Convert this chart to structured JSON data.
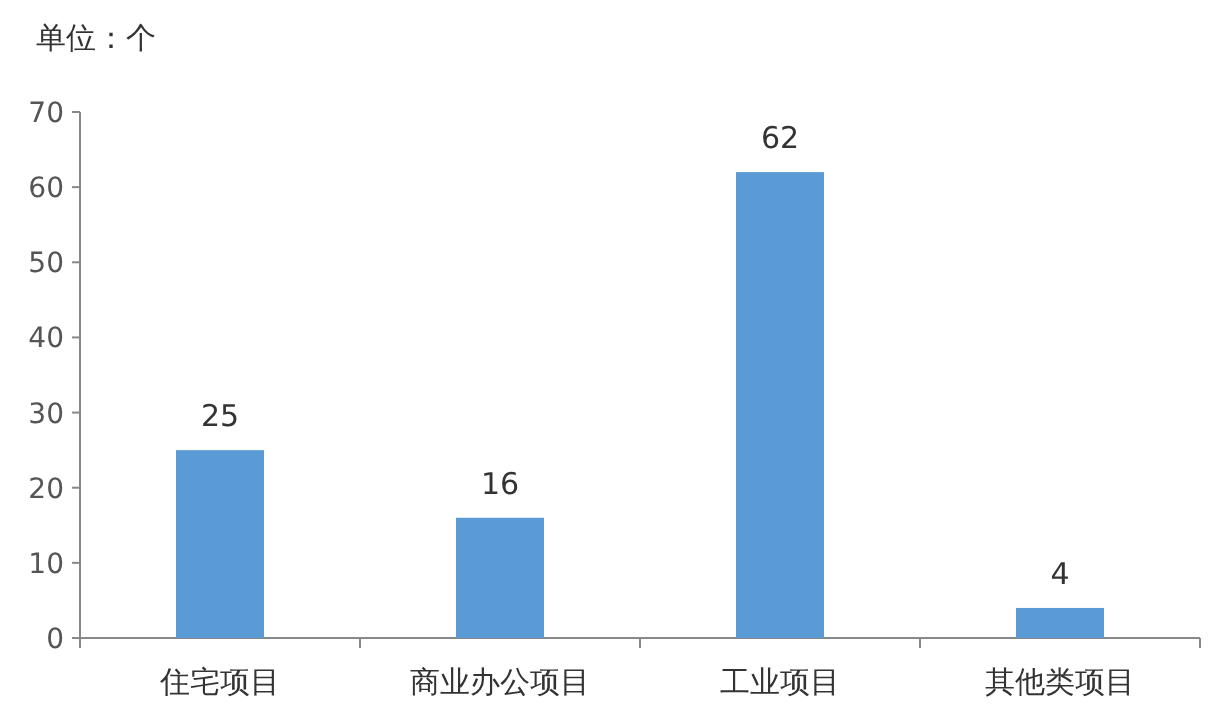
{
  "chart_data": {
    "type": "bar",
    "ylabel": "单位：个",
    "categories": [
      "住宅项目",
      "商业办公项目",
      "工业项目",
      "其他类项目"
    ],
    "values": [
      25,
      16,
      62,
      4
    ],
    "color": "#5b9bd5",
    "ylim": [
      0,
      70
    ],
    "yticks": [
      0,
      10,
      20,
      30,
      40,
      50,
      60,
      70
    ],
    "data_labels": true
  }
}
